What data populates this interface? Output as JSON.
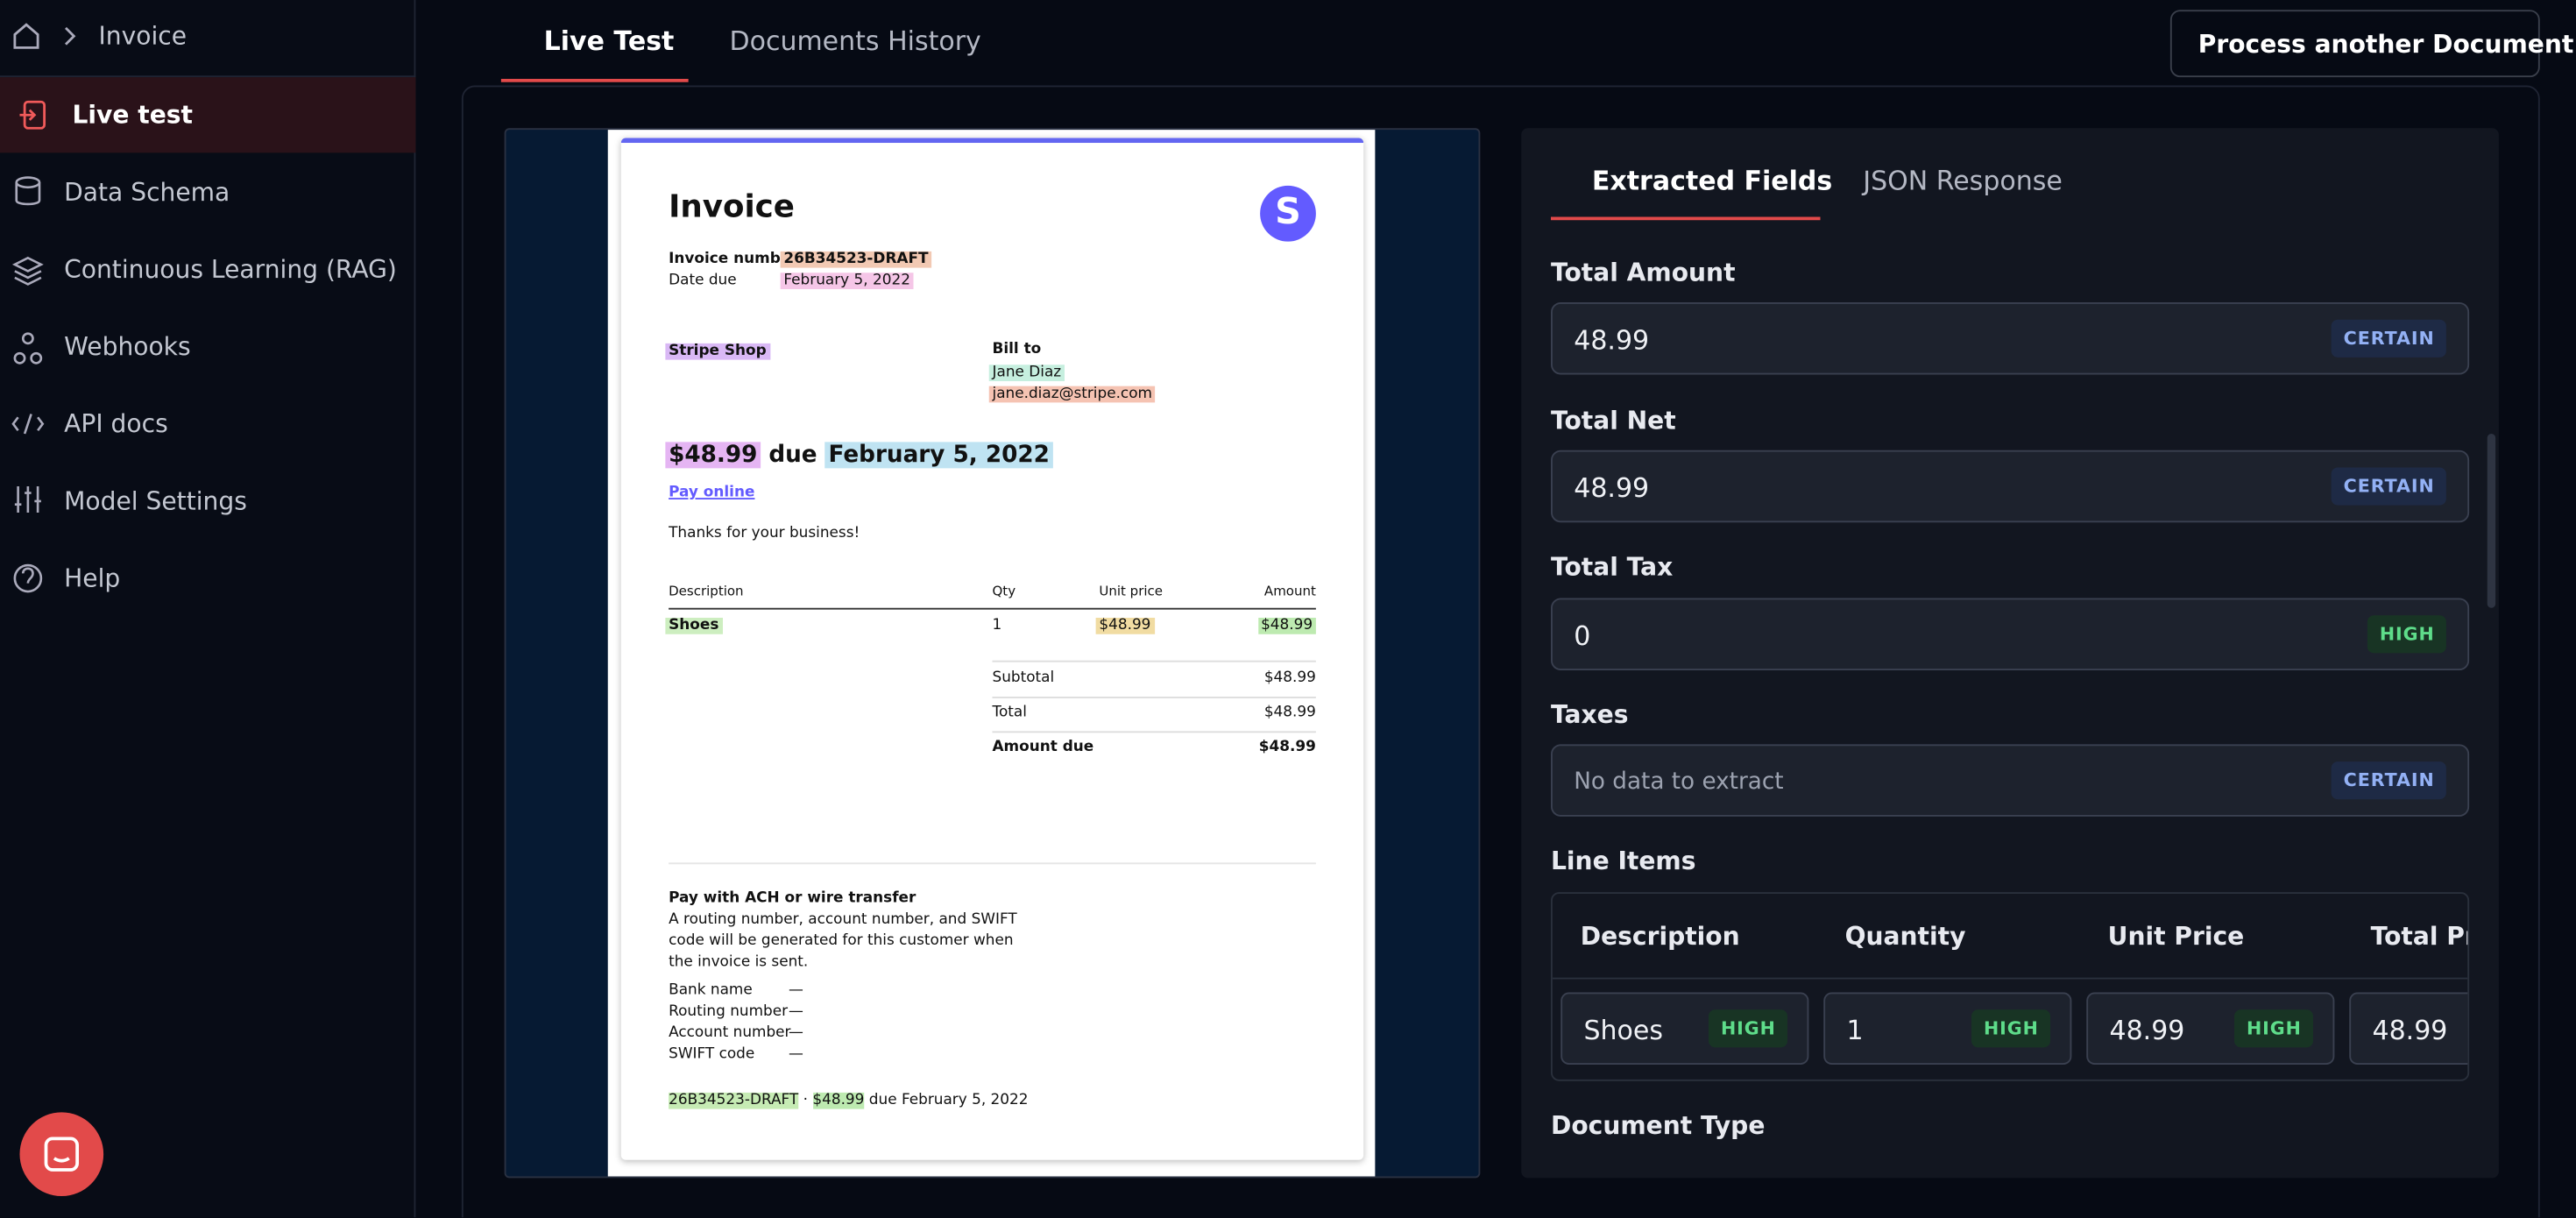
{
  "breadcrumb": {
    "current": "Invoice"
  },
  "sidebar": {
    "items": [
      "Live test",
      "Data Schema",
      "Continuous Learning (RAG)",
      "Webhooks",
      "API docs",
      "Model Settings",
      "Help"
    ]
  },
  "tabs": [
    "Live Test",
    "Documents History"
  ],
  "button": "Process another Document",
  "document": {
    "title": "Invoice",
    "logo": "S",
    "invoice_number_label": "Invoice number",
    "invoice_number": "26B34523-DRAFT",
    "date_due_label": "Date due",
    "date_due": "February 5, 2022",
    "seller": "Stripe Shop",
    "bill_to_label": "Bill to",
    "customer_name": "Jane Diaz",
    "customer_email": "jane.diaz@stripe.com",
    "headline": {
      "amount": "$48.99",
      "due": "due",
      "date": "February 5, 2022"
    },
    "pay_online": "Pay online",
    "thanks": "Thanks for your business!",
    "table": {
      "headers": [
        "Description",
        "Qty",
        "Unit price",
        "Amount"
      ],
      "rows": [
        [
          "Shoes",
          "1",
          "$48.99",
          "$48.99"
        ]
      ]
    },
    "totals": [
      [
        "Subtotal",
        "$48.99"
      ],
      [
        "Total",
        "$48.99"
      ],
      [
        "Amount due",
        "$48.99"
      ]
    ],
    "ach_title": "Pay with ACH or wire transfer",
    "ach_text": [
      "A routing number, account number, and SWIFT",
      "code will be generated for this customer when",
      "the invoice is sent."
    ],
    "bank": [
      [
        "Bank name",
        "—"
      ],
      [
        "Routing number",
        "—"
      ],
      [
        "Account number",
        "—"
      ],
      [
        "SWIFT code",
        "—"
      ]
    ],
    "footer": [
      "26B34523-DRAFT",
      " · ",
      "$48.99",
      " due February 5, 2022"
    ]
  },
  "panel": {
    "tabs": [
      "Extracted Fields",
      "JSON Response"
    ],
    "fields": [
      {
        "label": "Total Amount",
        "value": "48.99",
        "confidence": "CERTAIN"
      },
      {
        "label": "Total Net",
        "value": "48.99",
        "confidence": "CERTAIN"
      },
      {
        "label": "Total Tax",
        "value": "0",
        "confidence": "HIGH"
      },
      {
        "label": "Taxes",
        "value": "No data to extract",
        "confidence": "CERTAIN"
      }
    ],
    "line_items": {
      "label": "Line Items",
      "headers": [
        "Description",
        "Quantity",
        "Unit Price",
        "Total Price"
      ],
      "row": [
        {
          "value": "Shoes",
          "confidence": "HIGH"
        },
        {
          "value": "1",
          "confidence": "HIGH"
        },
        {
          "value": "48.99",
          "confidence": "HIGH"
        },
        {
          "value": "48.99"
        }
      ]
    },
    "document_type_label": "Document Type"
  }
}
